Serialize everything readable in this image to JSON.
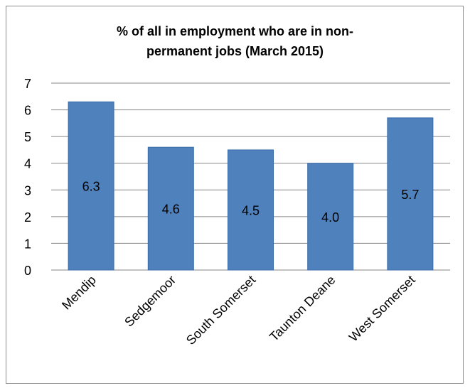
{
  "chart_data": {
    "type": "bar",
    "title_lines": [
      "% of all in employment who are in non-",
      "permanent jobs (March 2015)"
    ],
    "categories": [
      "Mendip",
      "Sedgemoor",
      "South Somerset",
      "Taunton Deane",
      "West Somerset"
    ],
    "values": [
      6.3,
      4.6,
      4.5,
      4.0,
      5.7
    ],
    "data_labels": [
      "6.3",
      "4.6",
      "4.5",
      "4.0",
      "5.7"
    ],
    "yticks": [
      "0",
      "1",
      "2",
      "3",
      "4",
      "5",
      "6",
      "7"
    ],
    "ylim": [
      0,
      7
    ],
    "grid": true,
    "legend": "none",
    "colors": {
      "bar": "#4f81bd",
      "bar_edge": "#3a6aa8",
      "grid": "#868686"
    }
  }
}
